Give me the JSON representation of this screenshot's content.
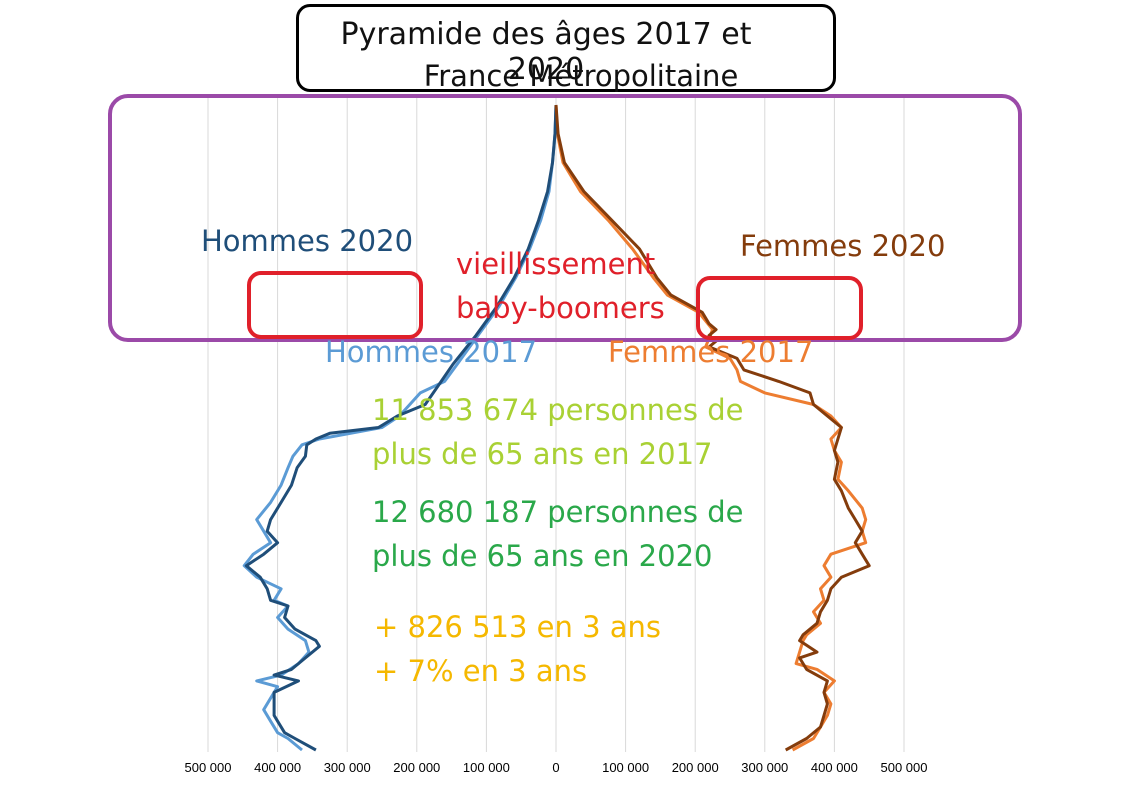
{
  "title": {
    "line1": "Pyramide des âges 2017 et 2020",
    "line2": "France Métropolitaine"
  },
  "series_labels": {
    "hommes_2020": "Hommes 2020",
    "femmes_2020": "Femmes 2020",
    "hommes_2017": "Hommes 2017",
    "femmes_2017": "Femmes 2017"
  },
  "annotations": {
    "aging": [
      "vieillissement",
      "baby-boomers"
    ],
    "stat_2017": [
      "11 853 674 personnes de",
      "plus de 65 ans en 2017"
    ],
    "stat_2020": [
      "12 680 187 personnes de",
      "plus de 65 ans en 2020"
    ],
    "delta": [
      "+ 826 513 en 3 ans",
      "+ 7% en 3 ans"
    ]
  },
  "colors": {
    "hommes_2020": "#1f4e79",
    "hommes_2017": "#5b9bd5",
    "femmes_2020": "#843c0c",
    "femmes_2017": "#ed7d31",
    "aging": "#e0202a",
    "stat_2017": "#a9d134",
    "stat_2020": "#2aa84a",
    "delta": "#f5b800",
    "purple_box": "#9b4aa8",
    "red_box": "#e0202a"
  },
  "chart_data": {
    "type": "line",
    "orientation": "population-pyramid",
    "x_ticks": [
      "500 000",
      "400 000",
      "300 000",
      "200 000",
      "100 000",
      "0",
      "100 000",
      "200 000",
      "300 000",
      "400 000",
      "500 000"
    ],
    "xlim": [
      -500000,
      500000
    ],
    "y_key": "age_from_top",
    "grid": true,
    "series": [
      {
        "name": "Hommes 2020",
        "side": "left",
        "values": [
          [
            0,
            0
          ],
          [
            5,
            1500
          ],
          [
            10,
            5000
          ],
          [
            15,
            12000
          ],
          [
            20,
            25000
          ],
          [
            25,
            40000
          ],
          [
            30,
            60000
          ],
          [
            35,
            85000
          ],
          [
            40,
            115000
          ],
          [
            45,
            148000
          ],
          [
            48,
            165000
          ],
          [
            52,
            188000
          ],
          [
            54,
            228000
          ],
          [
            56,
            255000
          ],
          [
            57,
            325000
          ],
          [
            58,
            345000
          ],
          [
            59,
            358000
          ],
          [
            61,
            360000
          ],
          [
            63,
            372000
          ],
          [
            66,
            380000
          ],
          [
            69,
            395000
          ],
          [
            72,
            410000
          ],
          [
            74,
            415000
          ],
          [
            76,
            400000
          ],
          [
            78,
            420000
          ],
          [
            80,
            445000
          ],
          [
            82,
            425000
          ],
          [
            84,
            415000
          ],
          [
            86,
            410000
          ],
          [
            87,
            385000
          ],
          [
            89,
            390000
          ],
          [
            91,
            375000
          ],
          [
            93,
            345000
          ],
          [
            94,
            340000
          ],
          [
            96,
            360000
          ],
          [
            98,
            380000
          ],
          [
            99,
            405000
          ],
          [
            100,
            370000
          ],
          [
            102,
            405000
          ],
          [
            104,
            405000
          ],
          [
            106,
            405000
          ],
          [
            107,
            400000
          ],
          [
            109,
            390000
          ],
          [
            110,
            375000
          ],
          [
            112,
            345000
          ]
        ]
      },
      {
        "name": "Hommes 2017",
        "side": "left",
        "values": [
          [
            0,
            0
          ],
          [
            5,
            1500
          ],
          [
            10,
            5000
          ],
          [
            15,
            10000
          ],
          [
            20,
            22000
          ],
          [
            25,
            38000
          ],
          [
            30,
            58000
          ],
          [
            35,
            82000
          ],
          [
            40,
            112000
          ],
          [
            45,
            142000
          ],
          [
            48,
            160000
          ],
          [
            50,
            195000
          ],
          [
            52,
            210000
          ],
          [
            54,
            225000
          ],
          [
            56,
            250000
          ],
          [
            58,
            340000
          ],
          [
            59,
            365000
          ],
          [
            61,
            378000
          ],
          [
            63,
            385000
          ],
          [
            66,
            395000
          ],
          [
            69,
            410000
          ],
          [
            72,
            430000
          ],
          [
            74,
            420000
          ],
          [
            76,
            410000
          ],
          [
            78,
            435000
          ],
          [
            80,
            448000
          ],
          [
            82,
            430000
          ],
          [
            84,
            395000
          ],
          [
            86,
            405000
          ],
          [
            87,
            385000
          ],
          [
            89,
            400000
          ],
          [
            91,
            385000
          ],
          [
            93,
            360000
          ],
          [
            95,
            355000
          ],
          [
            97,
            370000
          ],
          [
            99,
            395000
          ],
          [
            100,
            430000
          ],
          [
            101,
            400000
          ],
          [
            103,
            410000
          ],
          [
            105,
            420000
          ],
          [
            107,
            410000
          ],
          [
            109,
            400000
          ],
          [
            110,
            385000
          ],
          [
            112,
            365000
          ]
        ]
      },
      {
        "name": "Femmes 2020",
        "side": "right",
        "values": [
          [
            0,
            0
          ],
          [
            5,
            3000
          ],
          [
            10,
            12000
          ],
          [
            15,
            40000
          ],
          [
            20,
            80000
          ],
          [
            25,
            120000
          ],
          [
            30,
            145000
          ],
          [
            33,
            165000
          ],
          [
            36,
            210000
          ],
          [
            38,
            220000
          ],
          [
            39,
            230000
          ],
          [
            40,
            220000
          ],
          [
            41,
            230000
          ],
          [
            42,
            220000
          ],
          [
            44,
            260000
          ],
          [
            46,
            270000
          ],
          [
            48,
            320000
          ],
          [
            50,
            365000
          ],
          [
            52,
            370000
          ],
          [
            54,
            390000
          ],
          [
            56,
            410000
          ],
          [
            58,
            405000
          ],
          [
            60,
            400000
          ],
          [
            62,
            405000
          ],
          [
            65,
            400000
          ],
          [
            67,
            410000
          ],
          [
            70,
            420000
          ],
          [
            72,
            430000
          ],
          [
            74,
            440000
          ],
          [
            76,
            430000
          ],
          [
            78,
            440000
          ],
          [
            80,
            450000
          ],
          [
            82,
            410000
          ],
          [
            84,
            395000
          ],
          [
            86,
            390000
          ],
          [
            88,
            380000
          ],
          [
            90,
            375000
          ],
          [
            92,
            355000
          ],
          [
            93,
            350000
          ],
          [
            95,
            375000
          ],
          [
            96,
            350000
          ],
          [
            98,
            360000
          ],
          [
            100,
            390000
          ],
          [
            102,
            385000
          ],
          [
            104,
            390000
          ],
          [
            106,
            385000
          ],
          [
            108,
            380000
          ],
          [
            110,
            360000
          ],
          [
            112,
            330000
          ]
        ]
      },
      {
        "name": "Femmes 2017",
        "side": "right",
        "values": [
          [
            0,
            0
          ],
          [
            5,
            2000
          ],
          [
            10,
            10000
          ],
          [
            15,
            35000
          ],
          [
            20,
            75000
          ],
          [
            25,
            110000
          ],
          [
            30,
            140000
          ],
          [
            33,
            160000
          ],
          [
            36,
            205000
          ],
          [
            39,
            225000
          ],
          [
            42,
            215000
          ],
          [
            44,
            250000
          ],
          [
            46,
            260000
          ],
          [
            48,
            265000
          ],
          [
            50,
            300000
          ],
          [
            52,
            370000
          ],
          [
            54,
            395000
          ],
          [
            56,
            410000
          ],
          [
            58,
            395000
          ],
          [
            60,
            400000
          ],
          [
            62,
            410000
          ],
          [
            65,
            405000
          ],
          [
            67,
            420000
          ],
          [
            70,
            440000
          ],
          [
            72,
            445000
          ],
          [
            74,
            440000
          ],
          [
            76,
            445000
          ],
          [
            78,
            395000
          ],
          [
            80,
            385000
          ],
          [
            82,
            395000
          ],
          [
            84,
            380000
          ],
          [
            86,
            385000
          ],
          [
            88,
            370000
          ],
          [
            90,
            380000
          ],
          [
            92,
            360000
          ],
          [
            93,
            355000
          ],
          [
            95,
            350000
          ],
          [
            97,
            345000
          ],
          [
            98,
            375000
          ],
          [
            100,
            400000
          ],
          [
            102,
            385000
          ],
          [
            104,
            395000
          ],
          [
            106,
            390000
          ],
          [
            108,
            380000
          ],
          [
            110,
            370000
          ],
          [
            112,
            340000
          ]
        ]
      }
    ]
  }
}
